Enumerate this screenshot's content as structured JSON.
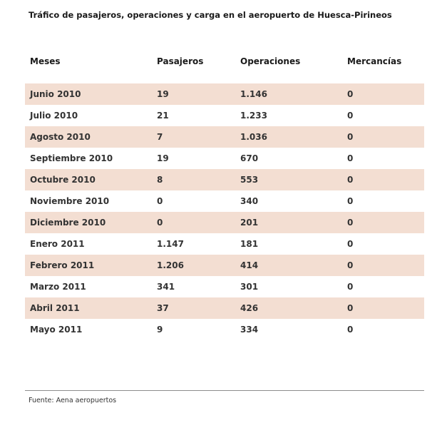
{
  "page": {
    "title": "Tráfico de pasajeros, operaciones y carga en el aeropuerto de Huesca-Pirineos",
    "source": "Fuente: Aena aeropuertos"
  },
  "chart_data": {
    "type": "table",
    "title": "Tráfico de pasajeros, operaciones y carga en el aeropuerto de Huesca-Pirineos",
    "columns": [
      "Meses",
      "Pasajeros",
      "Operaciones",
      "Mercancías"
    ],
    "rows": [
      [
        "Junio 2010",
        "19",
        "1.146",
        "0"
      ],
      [
        "Julio 2010",
        "21",
        "1.233",
        "0"
      ],
      [
        "Agosto 2010",
        "7",
        "1.036",
        "0"
      ],
      [
        "Septiembre 2010",
        "19",
        "670",
        "0"
      ],
      [
        "Octubre 2010",
        "8",
        "553",
        "0"
      ],
      [
        "Noviembre 2010",
        "0",
        "340",
        "0"
      ],
      [
        "Diciembre 2010",
        "0",
        "201",
        "0"
      ],
      [
        "Enero 2011",
        "1.147",
        "181",
        "0"
      ],
      [
        "Febrero 2011",
        "1.206",
        "414",
        "0"
      ],
      [
        "Marzo 2011",
        "341",
        "301",
        "0"
      ],
      [
        "Abril 2011",
        "37",
        "426",
        "0"
      ],
      [
        "Mayo 2011",
        "9",
        "334",
        "0"
      ]
    ],
    "source": "Fuente: Aena aeropuertos",
    "row_stripe_color": "#f3ded2",
    "text_color": "#333333",
    "layout": "alternating rows striped starting with first data row; legend none; grid off"
  }
}
